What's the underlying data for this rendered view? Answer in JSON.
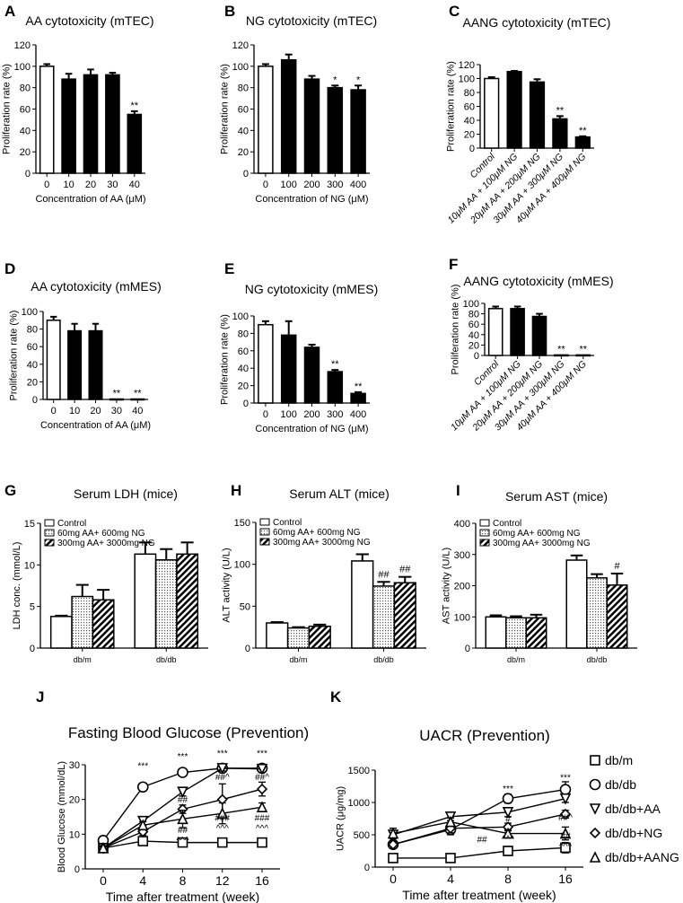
{
  "chart_data": [
    {
      "id": "A",
      "type": "bar",
      "title": "AA cytotoxicity (mTEC)",
      "xlabel": "Concentration of AA (μM)",
      "ylabel": "Proliferation rate (%)",
      "ylim": [
        0,
        120
      ],
      "yticks": [
        0,
        20,
        40,
        60,
        80,
        100,
        120
      ],
      "categories": [
        "0",
        "10",
        "20",
        "30",
        "40"
      ],
      "values": [
        100,
        88,
        92,
        92,
        55
      ],
      "errors": [
        2,
        5,
        5,
        2,
        3
      ],
      "significance": [
        "",
        "",
        "",
        "",
        "**"
      ],
      "fills": [
        "#ffffff",
        "#000000",
        "#000000",
        "#000000",
        "#000000"
      ]
    },
    {
      "id": "B",
      "type": "bar",
      "title": "NG cytotoxicity (mTEC)",
      "xlabel": "Concentration of NG (μM)",
      "ylabel": "Proliferation rate (%)",
      "ylim": [
        0,
        120
      ],
      "yticks": [
        0,
        20,
        40,
        60,
        80,
        100,
        120
      ],
      "categories": [
        "0",
        "100",
        "200",
        "300",
        "400"
      ],
      "values": [
        100,
        106,
        88,
        80,
        78
      ],
      "errors": [
        2,
        5,
        3,
        2,
        4
      ],
      "significance": [
        "",
        "",
        "",
        "*",
        "*"
      ],
      "fills": [
        "#ffffff",
        "#000000",
        "#000000",
        "#000000",
        "#000000"
      ]
    },
    {
      "id": "C",
      "type": "bar",
      "title": "AANG cytotoxicity (mTEC)",
      "xlabel": "",
      "ylabel": "Proliferation rate (%)",
      "ylim": [
        0,
        120
      ],
      "yticks": [
        0,
        20,
        40,
        60,
        80,
        100,
        120
      ],
      "categories": [
        "Control",
        "10μM AA + 100μM NG",
        "20μM AA + 200μM NG",
        "30μM AA + 300μM NG",
        "40μM AA + 400μM NG"
      ],
      "values": [
        100,
        110,
        95,
        42,
        16
      ],
      "errors": [
        2,
        1,
        4,
        4,
        1
      ],
      "significance": [
        "",
        "",
        "",
        "**",
        "**"
      ],
      "fills": [
        "#ffffff",
        "#000000",
        "#000000",
        "#000000",
        "#000000"
      ]
    },
    {
      "id": "D",
      "type": "bar",
      "title": "AA cytotoxicity (mMES)",
      "xlabel": "Concentration of AA (μM)",
      "ylabel": "Proliferation rate (%)",
      "ylim": [
        0,
        100
      ],
      "yticks": [
        0,
        20,
        40,
        60,
        80,
        100
      ],
      "categories": [
        "0",
        "10",
        "20",
        "30",
        "40"
      ],
      "values": [
        90,
        78,
        78,
        0.5,
        0.5
      ],
      "errors": [
        4,
        8,
        8,
        0,
        0
      ],
      "significance": [
        "",
        "",
        "",
        "**",
        "**"
      ],
      "fills": [
        "#ffffff",
        "#000000",
        "#000000",
        "#000000",
        "#000000"
      ]
    },
    {
      "id": "E",
      "type": "bar",
      "title": "NG cytotoxicity (mMES)",
      "xlabel": "Concentration of NG (μM)",
      "ylabel": "Proliferation rate (%)",
      "ylim": [
        0,
        100
      ],
      "yticks": [
        0,
        20,
        40,
        60,
        80,
        100
      ],
      "categories": [
        "0",
        "100",
        "200",
        "300",
        "400"
      ],
      "values": [
        90,
        78,
        64,
        36,
        11
      ],
      "errors": [
        4,
        16,
        3,
        2,
        1.5
      ],
      "significance": [
        "",
        "",
        "",
        "**",
        "**"
      ],
      "fills": [
        "#ffffff",
        "#000000",
        "#000000",
        "#000000",
        "#000000"
      ]
    },
    {
      "id": "F",
      "type": "bar",
      "title": "AANG cytotoxicity (mMES)",
      "xlabel": "",
      "ylabel": "Proliferation rate (%)",
      "ylim": [
        0,
        100
      ],
      "yticks": [
        0,
        20,
        40,
        60,
        80,
        100
      ],
      "categories": [
        "Control",
        "10μM AA + 100μM NG",
        "20μM AA + 200μM NG",
        "30μM AA + 300μM NG",
        "40μM AA + 400μM NG"
      ],
      "values": [
        90,
        90,
        75,
        1,
        1
      ],
      "errors": [
        4,
        4,
        5,
        0,
        0
      ],
      "significance": [
        "",
        "",
        "",
        "**",
        "**"
      ],
      "fills": [
        "#ffffff",
        "#000000",
        "#000000",
        "#000000",
        "#000000"
      ]
    },
    {
      "id": "G",
      "type": "grouped-bar",
      "title": "Serum LDH (mice)",
      "xlabel": "",
      "ylabel": "LDH conc. (mmol/L)",
      "ylim": [
        0,
        15
      ],
      "yticks": [
        0,
        5,
        10,
        15
      ],
      "categories": [
        "db/m",
        "db/db"
      ],
      "series": [
        {
          "name": "Control",
          "pattern": "white",
          "values": [
            3.8,
            11.3
          ],
          "errors": [
            0.1,
            1.4
          ],
          "significance": [
            "",
            ""
          ]
        },
        {
          "name": "60mg AA+ 600mg NG",
          "pattern": "dots",
          "values": [
            6.2,
            10.6
          ],
          "errors": [
            1.4,
            1.3
          ],
          "significance": [
            "",
            ""
          ]
        },
        {
          "name": "300mg AA+ 3000mg NG",
          "pattern": "hatch",
          "values": [
            5.8,
            11.3
          ],
          "errors": [
            1.2,
            1.4
          ],
          "significance": [
            "",
            ""
          ]
        }
      ],
      "legend": "top-left"
    },
    {
      "id": "H",
      "type": "grouped-bar",
      "title": "Serum ALT (mice)",
      "xlabel": "",
      "ylabel": "ALT activity (U/L)",
      "ylim": [
        0,
        150
      ],
      "yticks": [
        0,
        50,
        100,
        150
      ],
      "categories": [
        "db/m",
        "db/db"
      ],
      "series": [
        {
          "name": "Control",
          "pattern": "white",
          "values": [
            30,
            104
          ],
          "errors": [
            1,
            8
          ],
          "significance": [
            "",
            ""
          ]
        },
        {
          "name": "60mg AA+ 600mg NG",
          "pattern": "dots",
          "values": [
            24,
            74
          ],
          "errors": [
            1,
            5
          ],
          "significance": [
            "",
            "##"
          ]
        },
        {
          "name": "300mg AA+ 3000mg NG",
          "pattern": "hatch",
          "values": [
            26,
            78
          ],
          "errors": [
            2,
            7
          ],
          "significance": [
            "",
            "##"
          ]
        }
      ],
      "legend": "top-left"
    },
    {
      "id": "I",
      "type": "grouped-bar",
      "title": "Serum AST (mice)",
      "xlabel": "",
      "ylabel": "AST activity (U/L)",
      "ylim": [
        0,
        400
      ],
      "yticks": [
        0,
        100,
        200,
        300,
        400
      ],
      "categories": [
        "db/m",
        "db/db"
      ],
      "series": [
        {
          "name": "Control",
          "pattern": "white",
          "values": [
            100,
            282
          ],
          "errors": [
            5,
            15
          ],
          "significance": [
            "",
            ""
          ]
        },
        {
          "name": "60mg AA+ 600mg NG",
          "pattern": "dots",
          "values": [
            97,
            225
          ],
          "errors": [
            5,
            12
          ],
          "significance": [
            "",
            ""
          ]
        },
        {
          "name": "300mg AA+ 3000mg NG",
          "pattern": "hatch",
          "values": [
            97,
            202
          ],
          "errors": [
            10,
            37
          ],
          "significance": [
            "",
            "#"
          ]
        }
      ],
      "legend": "top-left"
    },
    {
      "id": "J",
      "type": "line",
      "title": "Fasting Blood Glucose (Prevention)",
      "xlabel": "Time after treatment (week)",
      "ylabel": "Blood Glucose (mmol/dL)",
      "xlim": [
        0,
        16
      ],
      "ylim": [
        0,
        30
      ],
      "yticks": [
        0,
        10,
        20,
        30
      ],
      "x": [
        0,
        4,
        8,
        12,
        16
      ],
      "xticks": [
        "0",
        "4",
        "8",
        "12",
        "16"
      ],
      "series": [
        {
          "name": "db/m",
          "marker": "square",
          "values": [
            6,
            8,
            7.6,
            7.6,
            7.6
          ],
          "errors": [
            0.5,
            1,
            0.8,
            1,
            0.6
          ]
        },
        {
          "name": "db/db",
          "marker": "circle",
          "values": [
            8.2,
            23.6,
            27.8,
            29,
            29
          ],
          "errors": [
            1.2,
            1,
            1,
            0.8,
            1
          ]
        },
        {
          "name": "db/db+AA",
          "marker": "triangle-down",
          "values": [
            6,
            13.8,
            22.2,
            29,
            28.8
          ],
          "errors": [
            0.5,
            1.2,
            1.2,
            0.8,
            1
          ]
        },
        {
          "name": "db/db+NG",
          "marker": "diamond",
          "values": [
            6,
            10.7,
            17.2,
            20,
            23
          ],
          "errors": [
            0.5,
            1,
            1.2,
            4.5,
            2
          ]
        },
        {
          "name": "db/db+AANG",
          "marker": "triangle-up",
          "values": [
            6,
            12.6,
            14.4,
            16,
            17.8
          ],
          "errors": [
            0.5,
            1,
            2.5,
            3,
            1.2
          ]
        }
      ],
      "annotations": [
        {
          "text": "***",
          "x": 4,
          "y": 28.8
        },
        {
          "text": "***",
          "x": 8,
          "y": 31.6
        },
        {
          "text": "***",
          "x": 12,
          "y": 32.4
        },
        {
          "text": "***",
          "x": 16,
          "y": 32.4
        },
        {
          "text": "##",
          "x": 8,
          "y": 19.2
        },
        {
          "text": "##",
          "x": 8,
          "y": 10.4
        },
        {
          "text": "^^^",
          "x": 8,
          "y": 8.9
        },
        {
          "text": "##^",
          "x": 12,
          "y": 25.6
        },
        {
          "text": "##^",
          "x": 16,
          "y": 25.6
        },
        {
          "text": "###",
          "x": 12,
          "y": 13.8
        },
        {
          "text": "^^^",
          "x": 12,
          "y": 12.4
        },
        {
          "text": "###",
          "x": 16,
          "y": 13.8
        },
        {
          "text": "^^^",
          "x": 16,
          "y": 12.4
        }
      ]
    },
    {
      "id": "K",
      "type": "line",
      "title": "UACR (Prevention)",
      "xlabel": "Time after treatment (week)",
      "ylabel": "UACR (μg/mg)",
      "ylim": [
        0,
        1500
      ],
      "yticks": [
        0,
        500,
        1000,
        1500
      ],
      "x": [
        "0",
        "4",
        "8",
        "16"
      ],
      "xticks": [
        "0",
        "4",
        "8",
        "16"
      ],
      "series": [
        {
          "name": "db/m",
          "marker": "square",
          "values": [
            140,
            140,
            250,
            300
          ],
          "errors": [
            60,
            50,
            70,
            80
          ]
        },
        {
          "name": "db/db",
          "marker": "circle",
          "values": [
            350,
            580,
            1060,
            1200
          ],
          "errors": [
            60,
            80,
            70,
            120
          ]
        },
        {
          "name": "db/db+AA",
          "marker": "triangle-down",
          "values": [
            500,
            780,
            850,
            1060
          ],
          "errors": [
            100,
            60,
            70,
            60
          ]
        },
        {
          "name": "db/db+NG",
          "marker": "diamond",
          "values": [
            350,
            600,
            620,
            820
          ],
          "errors": [
            60,
            70,
            60,
            60
          ]
        },
        {
          "name": "db/db+AANG",
          "marker": "triangle-up",
          "values": [
            520,
            700,
            520,
            520
          ],
          "errors": [
            80,
            60,
            60,
            100
          ]
        }
      ],
      "annotations": [
        {
          "text": "***",
          "x": "8",
          "y": 1170
        },
        {
          "text": "***",
          "x": "16",
          "y": 1340
        },
        {
          "text": "#",
          "x": "8",
          "y": 700
        },
        {
          "text": "##",
          "x": "4",
          "y": 380
        },
        {
          "text": "^^^",
          "x": "8",
          "y": 390
        },
        {
          "text": "##^",
          "x": "16",
          "y": 720
        },
        {
          "text": "##",
          "x": "16",
          "y": 440
        },
        {
          "text": "^^^",
          "x": "16",
          "y": 360
        }
      ],
      "legend": "right"
    }
  ]
}
